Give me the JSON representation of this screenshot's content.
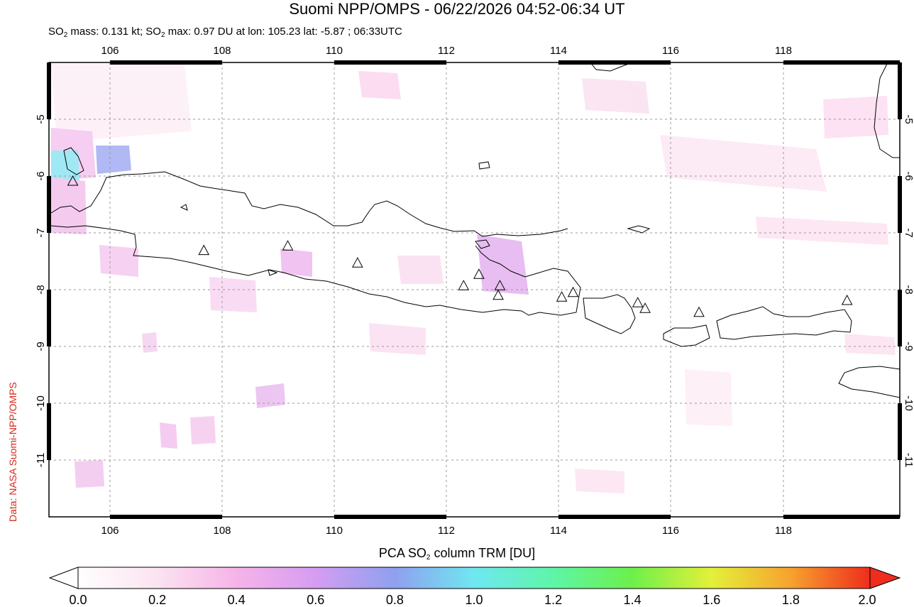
{
  "header": {
    "title": "Suomi NPP/OMPS - 06/22/2026 04:52-06:34 UT",
    "subtitle_so2_mass": "SO",
    "subtitle_sub1": "2",
    "subtitle_mid": " mass: 0.131 kt; SO",
    "subtitle_sub2": "2",
    "subtitle_rest": " max: 0.97 DU at lon: 105.23 lat: -5.87 ; 06:33UTC"
  },
  "credit": "Data: NASA Suomi-NPP/OMPS",
  "map": {
    "lon_range": [
      105,
      120
    ],
    "lat_range": [
      -12,
      -4
    ],
    "x_ticks": [
      "106",
      "108",
      "110",
      "112",
      "114",
      "116",
      "118"
    ],
    "y_ticks": [
      "-5",
      "-6",
      "-7",
      "-8",
      "-9",
      "-10",
      "-11"
    ],
    "volcanoes": [
      {
        "lon": 105.42,
        "lat": -6.1
      },
      {
        "lon": 107.73,
        "lat": -7.32
      },
      {
        "lon": 109.21,
        "lat": -7.24
      },
      {
        "lon": 110.44,
        "lat": -7.54
      },
      {
        "lon": 112.31,
        "lat": -7.94
      },
      {
        "lon": 112.58,
        "lat": -7.74
      },
      {
        "lon": 112.95,
        "lat": -7.94
      },
      {
        "lon": 112.92,
        "lat": -8.11
      },
      {
        "lon": 114.04,
        "lat": -8.14
      },
      {
        "lon": 114.24,
        "lat": -8.06
      },
      {
        "lon": 115.38,
        "lat": -8.24
      },
      {
        "lon": 115.51,
        "lat": -8.34
      },
      {
        "lon": 116.46,
        "lat": -8.41
      },
      {
        "lon": 119.07,
        "lat": -8.2
      }
    ],
    "grid": true
  },
  "colorbar": {
    "title_pre": "PCA SO",
    "title_sub": "2",
    "title_post": " column TRM [DU]",
    "labels": [
      "0.0",
      "0.2",
      "0.4",
      "0.6",
      "0.8",
      "1.0",
      "1.2",
      "1.4",
      "1.6",
      "1.8",
      "2.0"
    ],
    "colors": [
      "#ffffff",
      "#fbe3f0",
      "#f7b3e8",
      "#d59df2",
      "#8fa0ef",
      "#6fe7f1",
      "#5ef5a8",
      "#6df04b",
      "#e4f03a",
      "#f7a22e",
      "#ee2d1c"
    ]
  }
}
